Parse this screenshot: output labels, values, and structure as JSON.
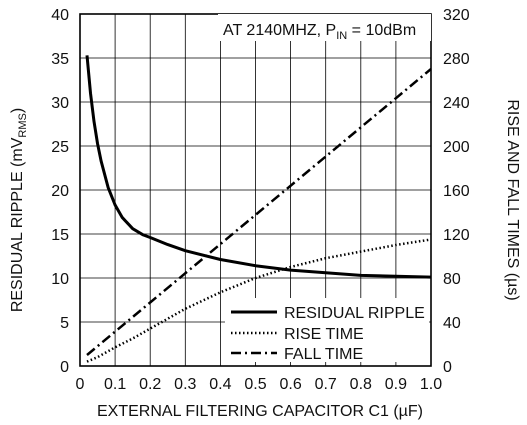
{
  "chart_data": {
    "type": "line",
    "xlabel": "EXTERNAL FILTERING CAPACITOR C1 (µF)",
    "ylabel_left": "RESIDUAL RIPPLE (mV",
    "ylabel_left_sub": "RMS",
    "ylabel_left_end": ")",
    "ylabel_right": "RISE AND FALL TIMES (µs)",
    "annotation": {
      "main": "AT 2140MHZ, P",
      "sub": "IN",
      "tail": " = 10dBm"
    },
    "x_ticks": [
      "0",
      "0.1",
      "0.2",
      "0.3",
      "0.4",
      "0.5",
      "0.6",
      "0.7",
      "0.8",
      "0.9",
      "1.0"
    ],
    "y_left_ticks": [
      "0",
      "5",
      "10",
      "15",
      "20",
      "25",
      "30",
      "35",
      "40"
    ],
    "y_right_ticks": [
      "0",
      "40",
      "80",
      "120",
      "160",
      "200",
      "240",
      "280",
      "320"
    ],
    "xlim": [
      0,
      1.0
    ],
    "ylim_left": [
      0,
      40
    ],
    "ylim_right": [
      0,
      320
    ],
    "grid": true,
    "legend_position": "lower-right",
    "series": [
      {
        "name": "RESIDUAL RIPPLE",
        "axis": "left",
        "style": "solid",
        "x": [
          0.02,
          0.03,
          0.04,
          0.05,
          0.06,
          0.08,
          0.1,
          0.12,
          0.15,
          0.18,
          0.2,
          0.25,
          0.3,
          0.4,
          0.5,
          0.6,
          0.7,
          0.8,
          0.9,
          1.0
        ],
        "y": [
          35.3,
          31.0,
          27.8,
          25.3,
          23.3,
          20.3,
          18.3,
          16.9,
          15.6,
          14.9,
          14.6,
          13.8,
          13.1,
          12.1,
          11.4,
          10.9,
          10.6,
          10.3,
          10.2,
          10.1
        ]
      },
      {
        "name": "RISE TIME",
        "axis": "right",
        "style": "dotted",
        "x": [
          0.02,
          0.05,
          0.1,
          0.15,
          0.2,
          0.3,
          0.4,
          0.5,
          0.6,
          0.7,
          0.8,
          0.9,
          1.0
        ],
        "y": [
          4,
          8,
          17,
          25,
          34,
          52,
          67,
          80,
          90,
          98,
          104,
          110,
          115
        ]
      },
      {
        "name": "FALL TIME",
        "axis": "right",
        "style": "dashdot",
        "x": [
          0.02,
          1.0
        ],
        "y": [
          10,
          270
        ]
      }
    ]
  }
}
